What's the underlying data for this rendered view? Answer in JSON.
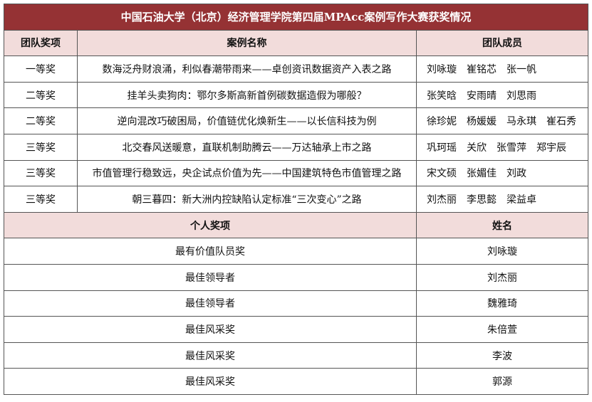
{
  "title": "中国石油大学（北京）经济管理学院第四届MPAcc案例写作大赛获奖情况",
  "team_headers": [
    "团队奖项",
    "案例名称",
    "团队成员"
  ],
  "team_rows": [
    {
      "award": "一等奖",
      "case": "数海泛舟财浪涌，利似春潮带雨来——卓创资讯数据资产入表之路",
      "members": [
        "刘咏璇",
        "崔铭芯",
        "张一帆"
      ]
    },
    {
      "award": "二等奖",
      "case": "挂羊头卖狗肉：鄂尔多斯高新首例碳数据造假为哪般？",
      "members": [
        "张笑晗",
        "安雨晴",
        "刘思雨"
      ]
    },
    {
      "award": "二等奖",
      "case": "逆向混改巧破困局，价值链优化焕新生——以长信科技为例",
      "members": [
        "徐珍妮",
        "杨媛媛",
        "马永琪",
        "崔石秀"
      ]
    },
    {
      "award": "三等奖",
      "case": "北交春风送暖意，直联机制助腾云——万达轴承上市之路",
      "members": [
        "巩珂瑶",
        "关欣",
        "张雪萍",
        "郑宇辰"
      ]
    },
    {
      "award": "三等奖",
      "case": "市值管理行稳致远，央企试点价值为先——中国建筑特色市值管理之路",
      "members": [
        "宋文硕",
        "张媚佳",
        "刘政"
      ]
    },
    {
      "award": "三等奖",
      "case": "朝三暮四：新大洲内控缺陷认定标准“三次变心”之路",
      "members": [
        "刘杰丽",
        "李思懿",
        "梁益卓"
      ]
    }
  ],
  "individual_headers": [
    "个人奖项",
    "姓名"
  ],
  "individual_rows": [
    {
      "award": "最有价值队员奖",
      "name": "刘咏璇"
    },
    {
      "award": "最佳领导者",
      "name": "刘杰丽"
    },
    {
      "award": "最佳领导者",
      "name": "魏雅琦"
    },
    {
      "award": "最佳风采奖",
      "name": "朱倍萱"
    },
    {
      "award": "最佳风采奖",
      "name": "李波"
    },
    {
      "award": "最佳风采奖",
      "name": "郭源"
    }
  ],
  "colors": {
    "title_bg": "#953234",
    "header_bg": "#f2dcdb"
  }
}
